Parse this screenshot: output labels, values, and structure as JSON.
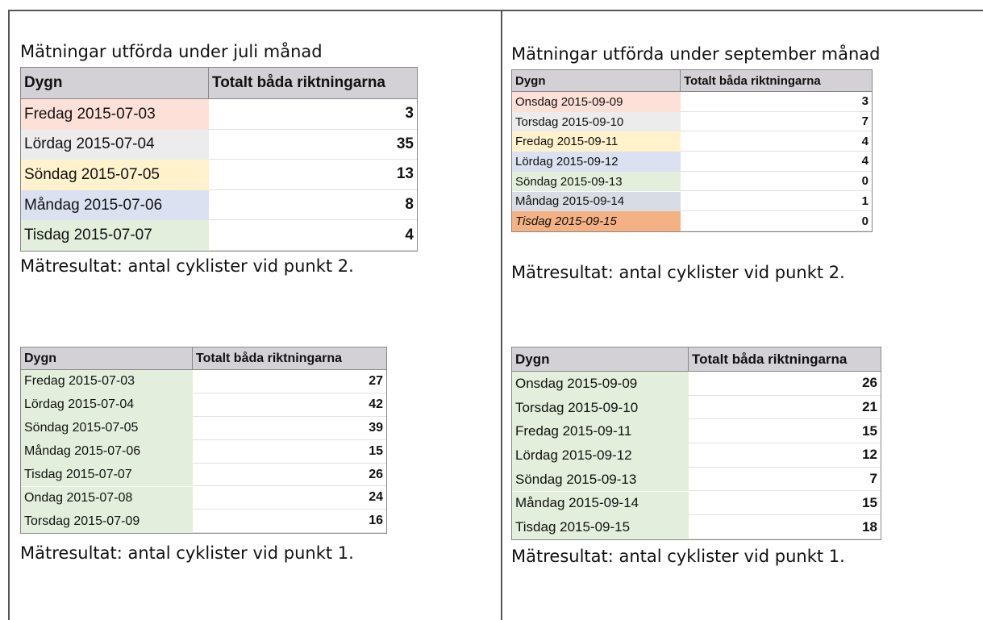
{
  "sections": [
    {
      "title": "Mätningar utförda under juli månad",
      "table": {
        "header": [
          "Dygn",
          "Totalt båda riktningarna"
        ],
        "rows": [
          [
            "Fredag 2015-07-03",
            3
          ],
          [
            "Lördag 2015-07-04",
            35
          ],
          [
            "Söndag 2015-07-05",
            13
          ],
          [
            "Måndag 2015-07-06",
            8
          ],
          [
            "Tisdag 2015-07-07",
            4
          ]
        ]
      },
      "caption": "Mätresultat: antal cyklister vid punkt 2."
    },
    {
      "title": "Mätningar utförda under september månad",
      "table": {
        "header": [
          "Dygn",
          "Totalt båda riktningarna"
        ],
        "rows": [
          [
            "Onsdag 2015-09-09",
            3
          ],
          [
            "Torsdag 2015-09-10",
            7
          ],
          [
            "Fredag 2015-09-11",
            4
          ],
          [
            "Lördag 2015-09-12",
            4
          ],
          [
            "Söndag 2015-09-13",
            0
          ],
          [
            "Måndag 2015-09-14",
            1
          ],
          [
            "Tisdag 2015-09-15",
            0
          ]
        ]
      },
      "caption": "Mätresultat: antal cyklister vid punkt 2."
    },
    {
      "table": {
        "header": [
          "Dygn",
          "Totalt båda riktningarna"
        ],
        "rows": [
          [
            "Fredag 2015-07-03",
            27
          ],
          [
            "Lördag 2015-07-04",
            42
          ],
          [
            "Söndag 2015-07-05",
            39
          ],
          [
            "Måndag 2015-07-06",
            15
          ],
          [
            "Tisdag 2015-07-07",
            26
          ],
          [
            "Ondag 2015-07-08",
            24
          ],
          [
            "Torsdag 2015-07-09",
            16
          ]
        ]
      },
      "caption": "Mätresultat: antal cyklister vid punkt 1."
    },
    {
      "table": {
        "header": [
          "Dygn",
          "Totalt båda riktningarna"
        ],
        "rows": [
          [
            "Onsdag 2015-09-09",
            26
          ],
          [
            "Torsdag 2015-09-10",
            21
          ],
          [
            "Fredag 2015-09-11",
            15
          ],
          [
            "Lördag 2015-09-12",
            12
          ],
          [
            "Söndag 2015-09-13",
            7
          ],
          [
            "Måndag 2015-09-14",
            15
          ],
          [
            "Tisdag 2015-09-15",
            18
          ]
        ]
      },
      "caption": "Mätresultat: antal cyklister vid punkt 1."
    }
  ]
}
